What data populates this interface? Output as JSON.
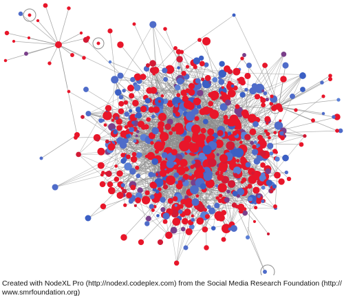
{
  "credit": {
    "text": "Created with NodeXL Pro (http://nodexl.codeplex.com) from the Social Media Research Foundation (http:// www.smrfoundation.org)"
  },
  "graph": {
    "layout": "force-directed network",
    "edge_color": "#8c8c8c",
    "node_colors": [
      "#e8162a",
      "#d21a35",
      "#4f6cc9",
      "#3b5fc4",
      "#7a3f8a",
      "#5a7fd6"
    ],
    "dominant_colors": {
      "red": "#e8162a",
      "blue": "#4a68c8",
      "purple": "#7a3f8a"
    }
  }
}
